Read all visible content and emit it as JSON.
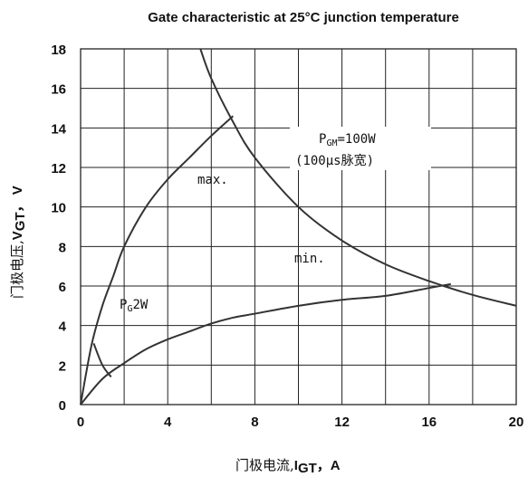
{
  "chart_data": {
    "type": "line",
    "title": "Gate characteristic at 25°C junction temperature",
    "xlabel": "门极电流,I_GT，A",
    "ylabel": "门极电压,V_GT，V",
    "xlim": [
      0,
      20
    ],
    "ylim": [
      0,
      18
    ],
    "x_ticks": [
      "0",
      "4",
      "8",
      "12",
      "16",
      "20"
    ],
    "y_ticks": [
      "0",
      "2",
      "4",
      "6",
      "8",
      "10",
      "12",
      "14",
      "16",
      "18"
    ],
    "grid": true,
    "series": [
      {
        "name": "max.",
        "points": [
          [
            0,
            0
          ],
          [
            0.5,
            3
          ],
          [
            1,
            5
          ],
          [
            1.5,
            6.5
          ],
          [
            2,
            8
          ],
          [
            3,
            10
          ],
          [
            4,
            11.4
          ],
          [
            5,
            12.5
          ],
          [
            6,
            13.6
          ],
          [
            7,
            14.6
          ]
        ]
      },
      {
        "name": "min.",
        "points": [
          [
            0,
            0
          ],
          [
            1,
            1.3
          ],
          [
            2,
            2.1
          ],
          [
            3,
            2.8
          ],
          [
            4,
            3.3
          ],
          [
            5,
            3.7
          ],
          [
            6,
            4.1
          ],
          [
            7,
            4.4
          ],
          [
            8,
            4.6
          ],
          [
            10,
            5.0
          ],
          [
            12,
            5.3
          ],
          [
            14,
            5.5
          ],
          [
            16,
            5.9
          ],
          [
            17,
            6.1
          ]
        ]
      },
      {
        "name": "P_GM=100W",
        "points": [
          [
            5.5,
            18
          ],
          [
            6,
            16.5
          ],
          [
            7,
            14.3
          ],
          [
            8,
            12.5
          ],
          [
            10,
            10
          ],
          [
            12,
            8.3
          ],
          [
            14,
            7.1
          ],
          [
            16,
            6.25
          ],
          [
            18,
            5.55
          ],
          [
            20,
            5.0
          ]
        ]
      },
      {
        "name": "P_G2W",
        "points": [
          [
            0.6,
            3.1
          ],
          [
            1,
            2.0
          ],
          [
            1.4,
            1.4
          ]
        ]
      }
    ],
    "annotations": {
      "max": "max.",
      "min": "min.",
      "pgm_line1_main": "P",
      "pgm_line1_sub": "GM",
      "pgm_line1_rest": "=100W",
      "pgm_line2": "(100μs脉宽)",
      "pg_main": "P",
      "pg_sub": "G",
      "pg_rest": "2W"
    },
    "xlabel_parts": {
      "cn": "门极电流,",
      "main": "I",
      "sub": "GT",
      "rest": "，A"
    },
    "ylabel_parts": {
      "cn": "门极电压,",
      "main": "V",
      "sub": "GT",
      "rest": "， V"
    }
  }
}
